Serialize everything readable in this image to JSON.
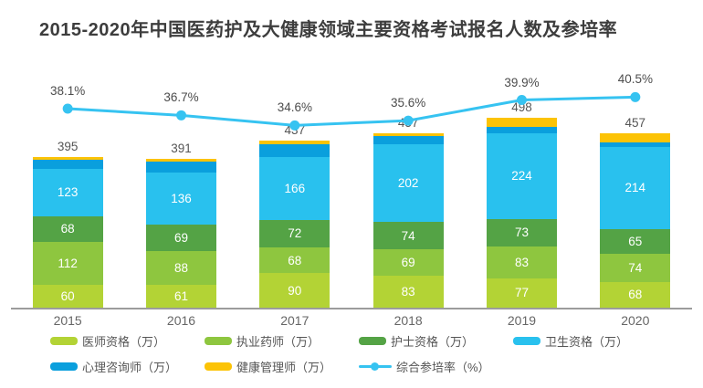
{
  "title": "2015-2020年中国医药护及大健康领域主要资格考试报名人数及参培率",
  "colors": {
    "physician": "#b3d335",
    "pharmacist": "#8ec63f",
    "nurse": "#54a345",
    "health_qualification": "#29c1ee",
    "counselor": "#0a9fdd",
    "health_manager": "#fcc306",
    "trend_line": "#36c3f1",
    "title_text": "#3d3d3d",
    "axis_line": "#9c9c9c",
    "label_gray": "#555555"
  },
  "chart_data": {
    "type": "bar",
    "subtype": "stacked-bar-with-line",
    "title": "2015-2020年中国医药护及大健康领域主要资格考试报名人数及参培率",
    "categories": [
      "2015",
      "2016",
      "2017",
      "2018",
      "2019",
      "2020"
    ],
    "series": [
      {
        "key": "physician",
        "name": "医师资格（万）",
        "color": "#b3d335",
        "value_labels_visible": true,
        "estimated": false,
        "values": [
          60,
          61,
          90,
          83,
          77,
          68
        ]
      },
      {
        "key": "pharmacist",
        "name": "执业药师（万）",
        "color": "#8ec63f",
        "value_labels_visible": true,
        "estimated": false,
        "values": [
          112,
          88,
          68,
          69,
          83,
          74
        ]
      },
      {
        "key": "nurse",
        "name": "护士资格（万）",
        "color": "#54a345",
        "value_labels_visible": true,
        "estimated": false,
        "values": [
          68,
          69,
          72,
          74,
          73,
          65
        ]
      },
      {
        "key": "health_qualification",
        "name": "卫生资格（万）",
        "color": "#29c1ee",
        "value_labels_visible": true,
        "estimated": false,
        "values": [
          123,
          136,
          166,
          202,
          224,
          214
        ]
      },
      {
        "key": "counselor",
        "name": "心理咨询师（万）",
        "color": "#0a9fdd",
        "value_labels_visible": false,
        "estimated": true,
        "values": [
          25,
          29,
          32,
          22,
          16,
          12
        ]
      },
      {
        "key": "health_manager",
        "name": "健康管理师（万）",
        "color": "#fcc306",
        "value_labels_visible": false,
        "estimated": true,
        "values": [
          7,
          8,
          9,
          7,
          25,
          24
        ]
      }
    ],
    "totals": [
      395,
      391,
      437,
      457,
      498,
      457
    ],
    "line_series": {
      "name": "综合参培率（%）",
      "color": "#36c3f1",
      "values": [
        38.1,
        36.7,
        34.6,
        35.6,
        39.9,
        40.5
      ],
      "labels": [
        "38.1%",
        "36.7%",
        "34.6%",
        "35.6%",
        "39.9%",
        "40.5%"
      ]
    },
    "ylabel": "",
    "xlabel": "",
    "grid": false,
    "legend_position": "bottom"
  },
  "legend": {
    "items": [
      {
        "type": "swatch",
        "key": "physician",
        "label": "医师资格（万）",
        "color": "#b3d335"
      },
      {
        "type": "swatch",
        "key": "pharmacist",
        "label": "执业药师（万）",
        "color": "#8ec63f"
      },
      {
        "type": "swatch",
        "key": "nurse",
        "label": "护士资格（万）",
        "color": "#54a345"
      },
      {
        "type": "swatch",
        "key": "health_qualification",
        "label": "卫生资格（万）",
        "color": "#29c1ee"
      },
      {
        "type": "swatch",
        "key": "counselor",
        "label": "心理咨询师（万）",
        "color": "#0a9fdd"
      },
      {
        "type": "swatch",
        "key": "health_manager",
        "label": "健康管理师（万）",
        "color": "#fcc306"
      },
      {
        "type": "line",
        "key": "trend",
        "label": "综合参培率（%）",
        "color": "#36c3f1"
      }
    ]
  }
}
